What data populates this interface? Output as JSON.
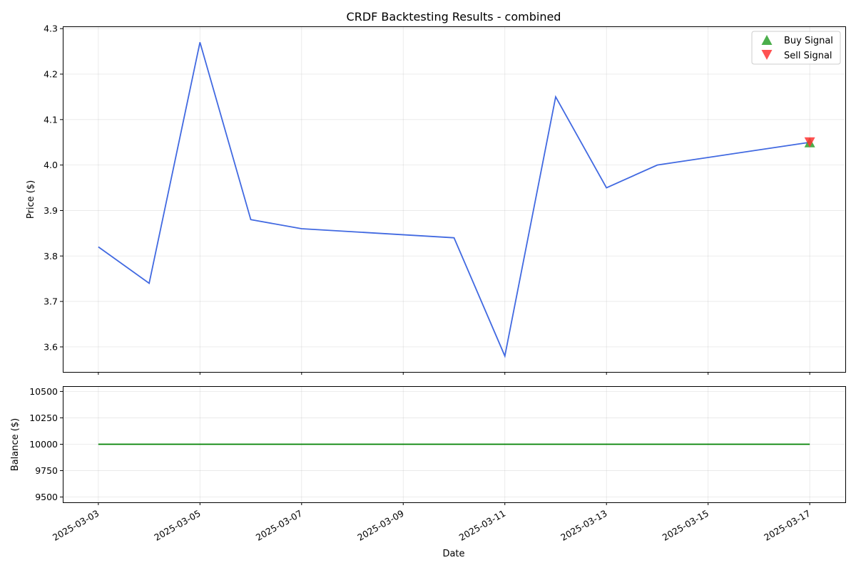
{
  "chart_data": [
    {
      "type": "line",
      "title": "CRDF Backtesting Results - combined",
      "ylabel": "Price ($)",
      "xlabel": "",
      "ylim": [
        3.545,
        4.305
      ],
      "yticks": [
        3.6,
        3.7,
        3.8,
        3.9,
        4.0,
        4.1,
        4.2,
        4.3
      ],
      "ytick_labels": [
        "3.6",
        "3.7",
        "3.8",
        "3.9",
        "4.0",
        "4.1",
        "4.2",
        "4.3"
      ],
      "grid": true,
      "legend": "top-right",
      "series": [
        {
          "color": "#4169e1",
          "x": [
            "2025-03-03",
            "2025-03-04",
            "2025-03-05",
            "2025-03-06",
            "2025-03-07",
            "2025-03-10",
            "2025-03-11",
            "2025-03-12",
            "2025-03-13",
            "2025-03-14",
            "2025-03-17"
          ],
          "values": [
            3.82,
            3.74,
            4.27,
            3.88,
            3.86,
            3.84,
            3.58,
            4.15,
            3.95,
            4.0,
            4.05
          ]
        }
      ],
      "buy_signals": {
        "name": "Buy Signal",
        "color": "#2ca02c",
        "x": [
          "2025-03-17"
        ],
        "values": [
          4.05
        ]
      },
      "sell_signals": {
        "name": "Sell Signal",
        "color": "#ff3333",
        "x": [
          "2025-03-17"
        ],
        "values": [
          4.05
        ]
      }
    },
    {
      "type": "line",
      "title": "",
      "ylabel": "Balance ($)",
      "xlabel": "Date",
      "ylim": [
        9450,
        10550
      ],
      "yticks": [
        9500,
        9750,
        10000,
        10250,
        10500
      ],
      "ytick_labels": [
        "9500",
        "9750",
        "10000",
        "10250",
        "10500"
      ],
      "grid": true,
      "series": [
        {
          "color": "#008000",
          "x": [
            "2025-03-03",
            "2025-03-04",
            "2025-03-05",
            "2025-03-06",
            "2025-03-07",
            "2025-03-10",
            "2025-03-11",
            "2025-03-12",
            "2025-03-13",
            "2025-03-14",
            "2025-03-17"
          ],
          "values": [
            10000,
            10000,
            10000,
            10000,
            10000,
            10000,
            10000,
            10000,
            10000,
            10000,
            10000
          ]
        }
      ]
    }
  ],
  "x_axis": {
    "range": [
      "2025-03-02T07:12",
      "2025-03-17T16:48"
    ],
    "ticks": [
      "2025-03-03",
      "2025-03-05",
      "2025-03-07",
      "2025-03-09",
      "2025-03-11",
      "2025-03-13",
      "2025-03-15",
      "2025-03-17"
    ],
    "tick_labels": [
      "2025-03-03",
      "2025-03-05",
      "2025-03-07",
      "2025-03-09",
      "2025-03-11",
      "2025-03-13",
      "2025-03-15",
      "2025-03-17"
    ]
  }
}
